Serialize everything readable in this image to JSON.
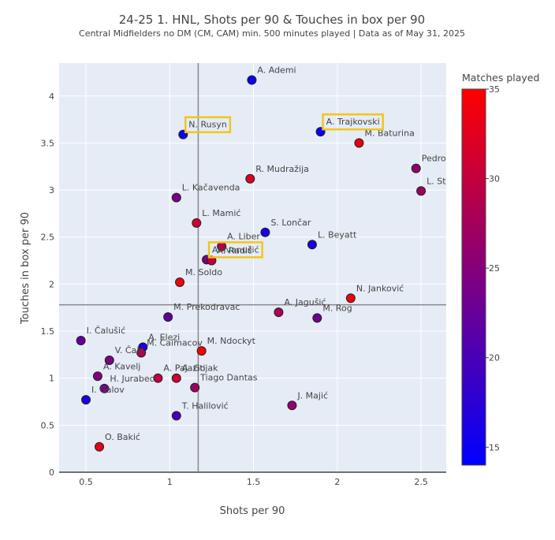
{
  "chart_data": {
    "type": "scatter",
    "title": "24-25 1. HNL, Shots per 90 & Touches in box per 90",
    "subtitle": "Central Midfielders no DM (CM, CAM) min. 500 minutes played | Data as of May 31, 2025",
    "xlabel": "Shots per 90",
    "ylabel": "Touches in box per 90",
    "xlim": [
      0.34,
      2.65
    ],
    "ylim": [
      0,
      4.35
    ],
    "xticks": [
      0.5,
      1,
      1.5,
      2,
      2.5
    ],
    "xtick_labels": [
      "0.5",
      "1",
      "1.5",
      "2",
      "2.5"
    ],
    "yticks": [
      0,
      0.5,
      1,
      1.5,
      2,
      2.5,
      3,
      3.5,
      4
    ],
    "ytick_labels": [
      "0",
      "0.5",
      "1",
      "1.5",
      "2",
      "2.5",
      "3",
      "3.5",
      "4"
    ],
    "grid": true,
    "reference_lines": {
      "x": 1.17,
      "y": 1.78
    },
    "colorbar": {
      "title": "Matches played",
      "min": 14,
      "max": 35,
      "ticks": [
        15,
        20,
        25,
        30,
        35
      ],
      "tick_labels": [
        "15",
        "20",
        "25",
        "30",
        "35"
      ],
      "colorscale": [
        "#0000ff",
        "#ff0000"
      ]
    },
    "highlight_color": "#f5c518",
    "points": [
      {
        "label": "A. Ademi",
        "x": 1.49,
        "y": 4.17,
        "matches": 15
      },
      {
        "label": "N. Rusyn",
        "x": 1.08,
        "y": 3.59,
        "matches": 15,
        "highlight": true
      },
      {
        "label": "A. Trajkovski",
        "x": 1.9,
        "y": 3.62,
        "matches": 15,
        "highlight": true
      },
      {
        "label": "M. Baturina",
        "x": 2.13,
        "y": 3.5,
        "matches": 33
      },
      {
        "label": "Pedro",
        "x": 2.47,
        "y": 3.23,
        "matches": 26
      },
      {
        "label": "L. Stojanović",
        "x": 2.5,
        "y": 2.99,
        "matches": 27
      },
      {
        "label": "R. Mudražija",
        "x": 1.48,
        "y": 3.12,
        "matches": 32
      },
      {
        "label": "L. Kačavenda",
        "x": 1.04,
        "y": 2.92,
        "matches": 24
      },
      {
        "label": "L. Mamić",
        "x": 1.16,
        "y": 2.65,
        "matches": 31
      },
      {
        "label": "S. Lončar",
        "x": 1.57,
        "y": 2.55,
        "matches": 16
      },
      {
        "label": "L. Beyatt",
        "x": 1.85,
        "y": 2.42,
        "matches": 16
      },
      {
        "label": "A. Liber",
        "x": 1.31,
        "y": 2.4,
        "matches": 29
      },
      {
        "label": "A. Ivanušić",
        "x": 1.22,
        "y": 2.26,
        "matches": 24,
        "highlight": true
      },
      {
        "label": "A. Radić",
        "x": 1.25,
        "y": 2.25,
        "matches": 30
      },
      {
        "label": "M. Soldo",
        "x": 1.06,
        "y": 2.02,
        "matches": 34
      },
      {
        "label": "N. Janković",
        "x": 2.08,
        "y": 1.85,
        "matches": 34
      },
      {
        "label": "A. Jagušić",
        "x": 1.65,
        "y": 1.7,
        "matches": 28
      },
      {
        "label": "M. Rog",
        "x": 1.88,
        "y": 1.64,
        "matches": 23
      },
      {
        "label": "M. Prekodravac",
        "x": 0.99,
        "y": 1.65,
        "matches": 22
      },
      {
        "label": "I. Čalušić",
        "x": 0.47,
        "y": 1.4,
        "matches": 22
      },
      {
        "label": "A. Elezi",
        "x": 0.84,
        "y": 1.33,
        "matches": 16
      },
      {
        "label": "M. Čaimacov",
        "x": 0.83,
        "y": 1.27,
        "matches": 29
      },
      {
        "label": "M. Ndockyt",
        "x": 1.19,
        "y": 1.29,
        "matches": 35
      },
      {
        "label": "V. Čaić",
        "x": 0.64,
        "y": 1.19,
        "matches": 24
      },
      {
        "label": "A. Kavelj",
        "x": 0.57,
        "y": 1.02,
        "matches": 25
      },
      {
        "label": "A. Pajaziti",
        "x": 0.93,
        "y": 1.0,
        "matches": 30
      },
      {
        "label": "A. Gojak",
        "x": 1.04,
        "y": 1.0,
        "matches": 31
      },
      {
        "label": "H. Jurabec",
        "x": 0.61,
        "y": 0.89,
        "matches": 24
      },
      {
        "label": "Tiago Dantas",
        "x": 1.15,
        "y": 0.9,
        "matches": 27
      },
      {
        "label": "I. Galov",
        "x": 0.5,
        "y": 0.77,
        "matches": 16
      },
      {
        "label": "J. Majić",
        "x": 1.73,
        "y": 0.71,
        "matches": 26
      },
      {
        "label": "T. Halilović",
        "x": 1.04,
        "y": 0.6,
        "matches": 20
      },
      {
        "label": "O. Bakić",
        "x": 0.58,
        "y": 0.27,
        "matches": 33
      }
    ]
  }
}
